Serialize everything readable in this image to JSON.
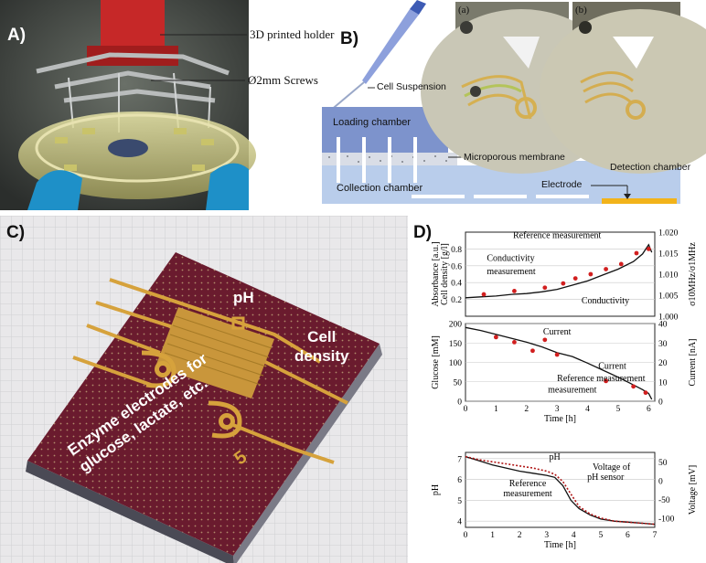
{
  "panels": {
    "a": {
      "letter": "A)",
      "callouts": [
        "3D printed holder",
        "Ø2mm Screws"
      ]
    },
    "b": {
      "letter": "B)",
      "pipette_label": "Cell Suspension",
      "loading": "Loading chamber",
      "membrane": "Microporous membrane",
      "collection": "Collection chamber",
      "electrode": "Electrode",
      "detection": "Detection chamber",
      "photo_a": "(a)",
      "photo_b": "(b)"
    },
    "c": {
      "letter": "C)",
      "ph": "pH",
      "cell_line1": "Cell",
      "cell_line2": "density",
      "enzyme_line1": "Enzyme electrodes for",
      "enzyme_line2": "glucose, lactate, etc.",
      "chip_number": "5"
    },
    "d": {
      "letter": "D)"
    }
  },
  "chart_data": [
    {
      "type": "line",
      "title": "Cell density",
      "xlim": [
        0,
        6.2
      ],
      "ylabel_left": "Absorbance [a.u.]",
      "ylabel_left2": "Cell density [g/l]",
      "ylim_left": [
        0,
        1
      ],
      "yticks_left": [
        0.2,
        0.4,
        0.6,
        0.8
      ],
      "ylabel_right": "σ10MHz/σ1MHz",
      "ylim_right": [
        1.0,
        1.02
      ],
      "yticks_right": [
        1.0,
        1.005,
        1.01,
        1.015,
        1.02
      ],
      "ytick_labels_right": [
        "1.000",
        "1.005",
        "1.010",
        "1.015",
        "1.020"
      ],
      "series": [
        {
          "name": "Conductivity",
          "style": "line",
          "x": [
            0,
            0.5,
            1.0,
            1.5,
            2.0,
            2.5,
            3.0,
            3.5,
            4.0,
            4.5,
            5.0,
            5.5,
            5.8,
            6.0,
            6.1
          ],
          "y": [
            0.22,
            0.23,
            0.24,
            0.26,
            0.27,
            0.29,
            0.32,
            0.37,
            0.42,
            0.49,
            0.56,
            0.65,
            0.74,
            0.85,
            0.76
          ]
        },
        {
          "name": "Reference measurement",
          "style": "points",
          "x": [
            0.6,
            1.6,
            2.6,
            3.2,
            3.6,
            4.1,
            4.6,
            5.1,
            5.6,
            6.0
          ],
          "y": [
            0.26,
            0.3,
            0.34,
            0.39,
            0.45,
            0.5,
            0.56,
            0.62,
            0.75,
            0.8
          ]
        }
      ],
      "annotations": [
        "Reference measurement",
        "Conductivity"
      ]
    },
    {
      "type": "line",
      "title": "Glucose",
      "xlim": [
        0,
        6.2
      ],
      "xlabel": "Time [h]",
      "xticks": [
        0,
        1,
        2,
        3,
        4,
        5,
        6
      ],
      "ylabel_left": "Glucose [mM]",
      "ylim_left": [
        0,
        200
      ],
      "yticks_left": [
        0,
        50,
        100,
        150,
        200
      ],
      "ylabel_right": "Current [nA]",
      "ylim_right": [
        0,
        40
      ],
      "yticks_right": [
        0,
        10,
        20,
        30,
        40
      ],
      "series": [
        {
          "name": "Current",
          "style": "line",
          "x": [
            0,
            0.5,
            1.0,
            1.5,
            2.0,
            2.5,
            3.0,
            3.5,
            4.0,
            4.5,
            5.0,
            5.4,
            5.8,
            6.0,
            6.1
          ],
          "y": [
            190,
            182,
            172,
            162,
            152,
            140,
            125,
            115,
            98,
            80,
            62,
            46,
            30,
            20,
            5
          ]
        },
        {
          "name": "Reference measurement",
          "style": "points",
          "x": [
            1.0,
            1.6,
            2.2,
            2.6,
            3.0,
            4.6,
            5.5,
            5.9
          ],
          "y": [
            165,
            152,
            130,
            158,
            120,
            52,
            38,
            22
          ]
        }
      ],
      "annotations": [
        "Current",
        "Reference measurement"
      ]
    },
    {
      "type": "line",
      "title": "pH",
      "xlim": [
        0,
        7
      ],
      "xlabel": "Time [h]",
      "xticks": [
        0,
        1,
        2,
        3,
        4,
        5,
        6,
        7
      ],
      "ylabel_left": "pH",
      "ylim_left": [
        3.7,
        7.3
      ],
      "yticks_left": [
        4,
        5,
        6,
        7
      ],
      "ylabel_right": "Voltage [mV]",
      "ylim_right": [
        -125,
        75
      ],
      "yticks_right": [
        -100,
        -50,
        0,
        50
      ],
      "series": [
        {
          "name": "Voltage of pH sensor",
          "style": "line",
          "x": [
            0,
            0.5,
            1.0,
            1.5,
            2.0,
            2.5,
            3.0,
            3.3,
            3.6,
            3.9,
            4.2,
            4.6,
            5.0,
            5.5,
            6.0,
            6.5,
            7.0
          ],
          "y": [
            7.1,
            6.9,
            6.7,
            6.55,
            6.4,
            6.3,
            6.2,
            6.1,
            5.7,
            5.0,
            4.6,
            4.3,
            4.1,
            4.0,
            3.95,
            3.9,
            3.85
          ]
        },
        {
          "name": "Reference measurement",
          "style": "dotted",
          "x": [
            0,
            0.5,
            1.0,
            1.5,
            2.0,
            2.5,
            3.0,
            3.3,
            3.6,
            3.9,
            4.2,
            4.6,
            5.0,
            5.5,
            6.0,
            6.5,
            7.0
          ],
          "y": [
            7.1,
            6.95,
            6.85,
            6.75,
            6.65,
            6.55,
            6.4,
            6.25,
            5.9,
            5.3,
            4.7,
            4.35,
            4.15,
            4.0,
            3.95,
            3.9,
            3.85
          ]
        }
      ],
      "annotations": [
        "pH",
        "Voltage of",
        "pH sensor",
        "Reference",
        "measurement"
      ]
    }
  ]
}
